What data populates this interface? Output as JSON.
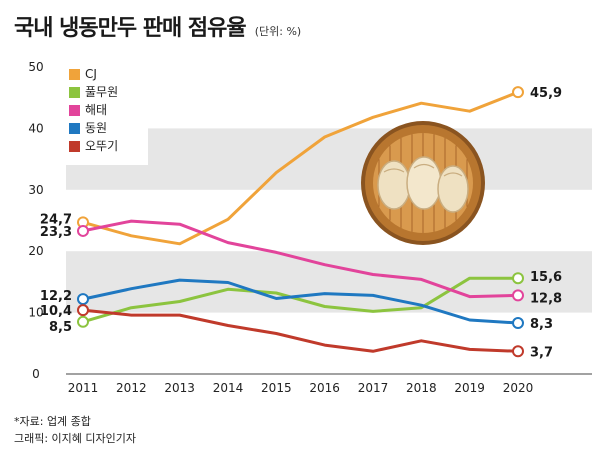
{
  "header": {
    "title": "국내 냉동만두 판매 점유율",
    "unit": "(단위: %)"
  },
  "footer": {
    "source": "*자료: 업계 종합",
    "credit": "그래픽: 이지혜 디자인기자"
  },
  "colors": {
    "band": "#e6e6e6",
    "pot_outer": "#b8762f",
    "pot_inner": "#d99a4e",
    "dumpling": "#efe1c2"
  },
  "icons": {
    "decoration": "dumpling-steamer-icon"
  },
  "chart_data": {
    "type": "line",
    "title": "국내 냉동만두 판매 점유율",
    "unit": "(단위: %)",
    "x": [
      "2011",
      "2012",
      "2013",
      "2014",
      "2015",
      "2016",
      "2017",
      "2018",
      "2019",
      "2020"
    ],
    "ylim": [
      0,
      50
    ],
    "yticks": [
      0,
      10,
      20,
      30,
      40,
      50
    ],
    "background_bands": [
      [
        10,
        20
      ],
      [
        30,
        40
      ]
    ],
    "legend_position": "top-left",
    "series": [
      {
        "name": "CJ",
        "color": "#f0a33a",
        "values": [
          24.7,
          22.5,
          21.2,
          25.2,
          32.8,
          38.6,
          41.8,
          44.1,
          42.8,
          45.9
        ],
        "start_label": "24,7",
        "end_label": "45,9"
      },
      {
        "name": "풀무원",
        "color": "#8cc43f",
        "values": [
          8.5,
          10.8,
          11.8,
          13.8,
          13.2,
          11.0,
          10.2,
          10.8,
          15.6,
          15.6
        ],
        "start_label": "8,5",
        "end_label": "15,6"
      },
      {
        "name": "해태",
        "color": "#e2449b",
        "values": [
          23.3,
          24.9,
          24.4,
          21.4,
          19.8,
          17.8,
          16.2,
          15.4,
          12.6,
          12.8
        ],
        "start_label": "23,3",
        "end_label": "12,8"
      },
      {
        "name": "동원",
        "color": "#1f78c1",
        "values": [
          12.2,
          13.9,
          15.3,
          14.9,
          12.3,
          13.1,
          12.8,
          11.2,
          8.8,
          8.3
        ],
        "start_label": "12,2",
        "end_label": "8,3"
      },
      {
        "name": "오뚜기",
        "color": "#c03a2b",
        "values": [
          10.4,
          9.6,
          9.6,
          7.9,
          6.6,
          4.7,
          3.7,
          5.4,
          4.0,
          3.7
        ],
        "start_label": "10,4",
        "end_label": "3,7"
      }
    ]
  }
}
